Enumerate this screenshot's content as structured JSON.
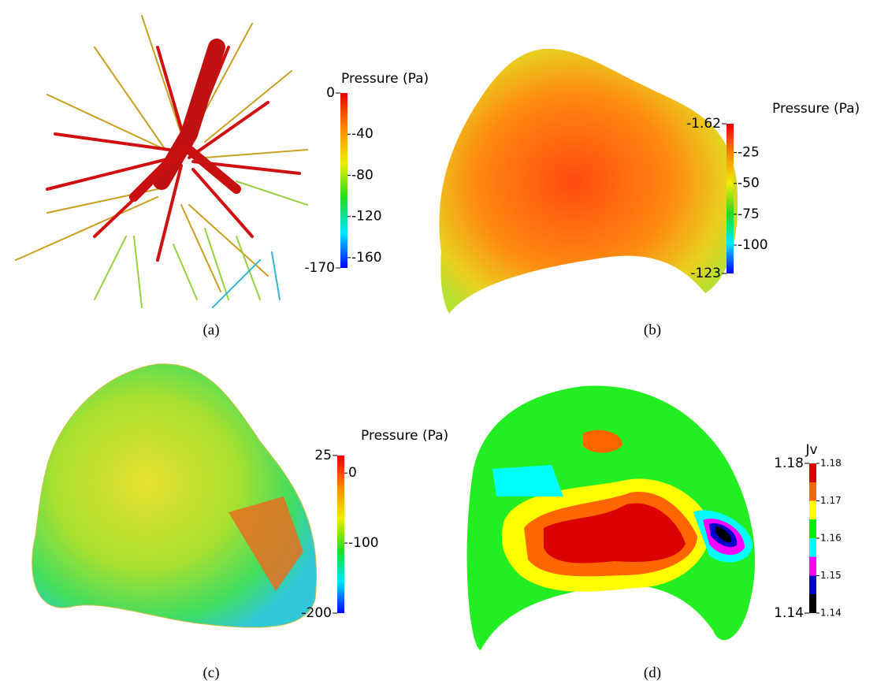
{
  "panels": [
    {
      "caption": "(a)",
      "colorbar": {
        "title": "Pressure (Pa)",
        "limits": [
          -170,
          0
        ],
        "ticks": [
          -40,
          -80,
          -120,
          -160
        ],
        "colors": [
          "#0000ff",
          "#00e5ff",
          "#22dd22",
          "#eeee00",
          "#ff8800",
          "#e60000"
        ],
        "discrete": false
      }
    },
    {
      "caption": "(b)",
      "colorbar": {
        "title": "Pressure (Pa)",
        "limits": [
          -123,
          -1.62
        ],
        "ticks": [
          -25,
          -50,
          -75,
          -100
        ],
        "colors": [
          "#0000ff",
          "#00e5ff",
          "#22dd22",
          "#eeee00",
          "#ff8800",
          "#e60000"
        ],
        "discrete": false
      }
    },
    {
      "caption": "(c)",
      "colorbar": {
        "title": "Pressure (Pa)",
        "limits": [
          -200,
          25
        ],
        "ticks": [
          0,
          -100
        ],
        "colors": [
          "#0000ff",
          "#00e5ff",
          "#22dd22",
          "#eeee00",
          "#ff8800",
          "#e60000"
        ],
        "discrete": false
      }
    },
    {
      "caption": "(d)",
      "colorbar": {
        "title": "Jv",
        "limits": [
          1.14,
          1.18
        ],
        "ticks": [
          1.18,
          1.17,
          1.16,
          1.15,
          1.14
        ],
        "colors": [
          "#000000",
          "#0000cc",
          "#ff00ff",
          "#00ffff",
          "#00ee00",
          "#ffff00",
          "#ff6600",
          "#dd0000"
        ],
        "discrete": true
      }
    }
  ]
}
